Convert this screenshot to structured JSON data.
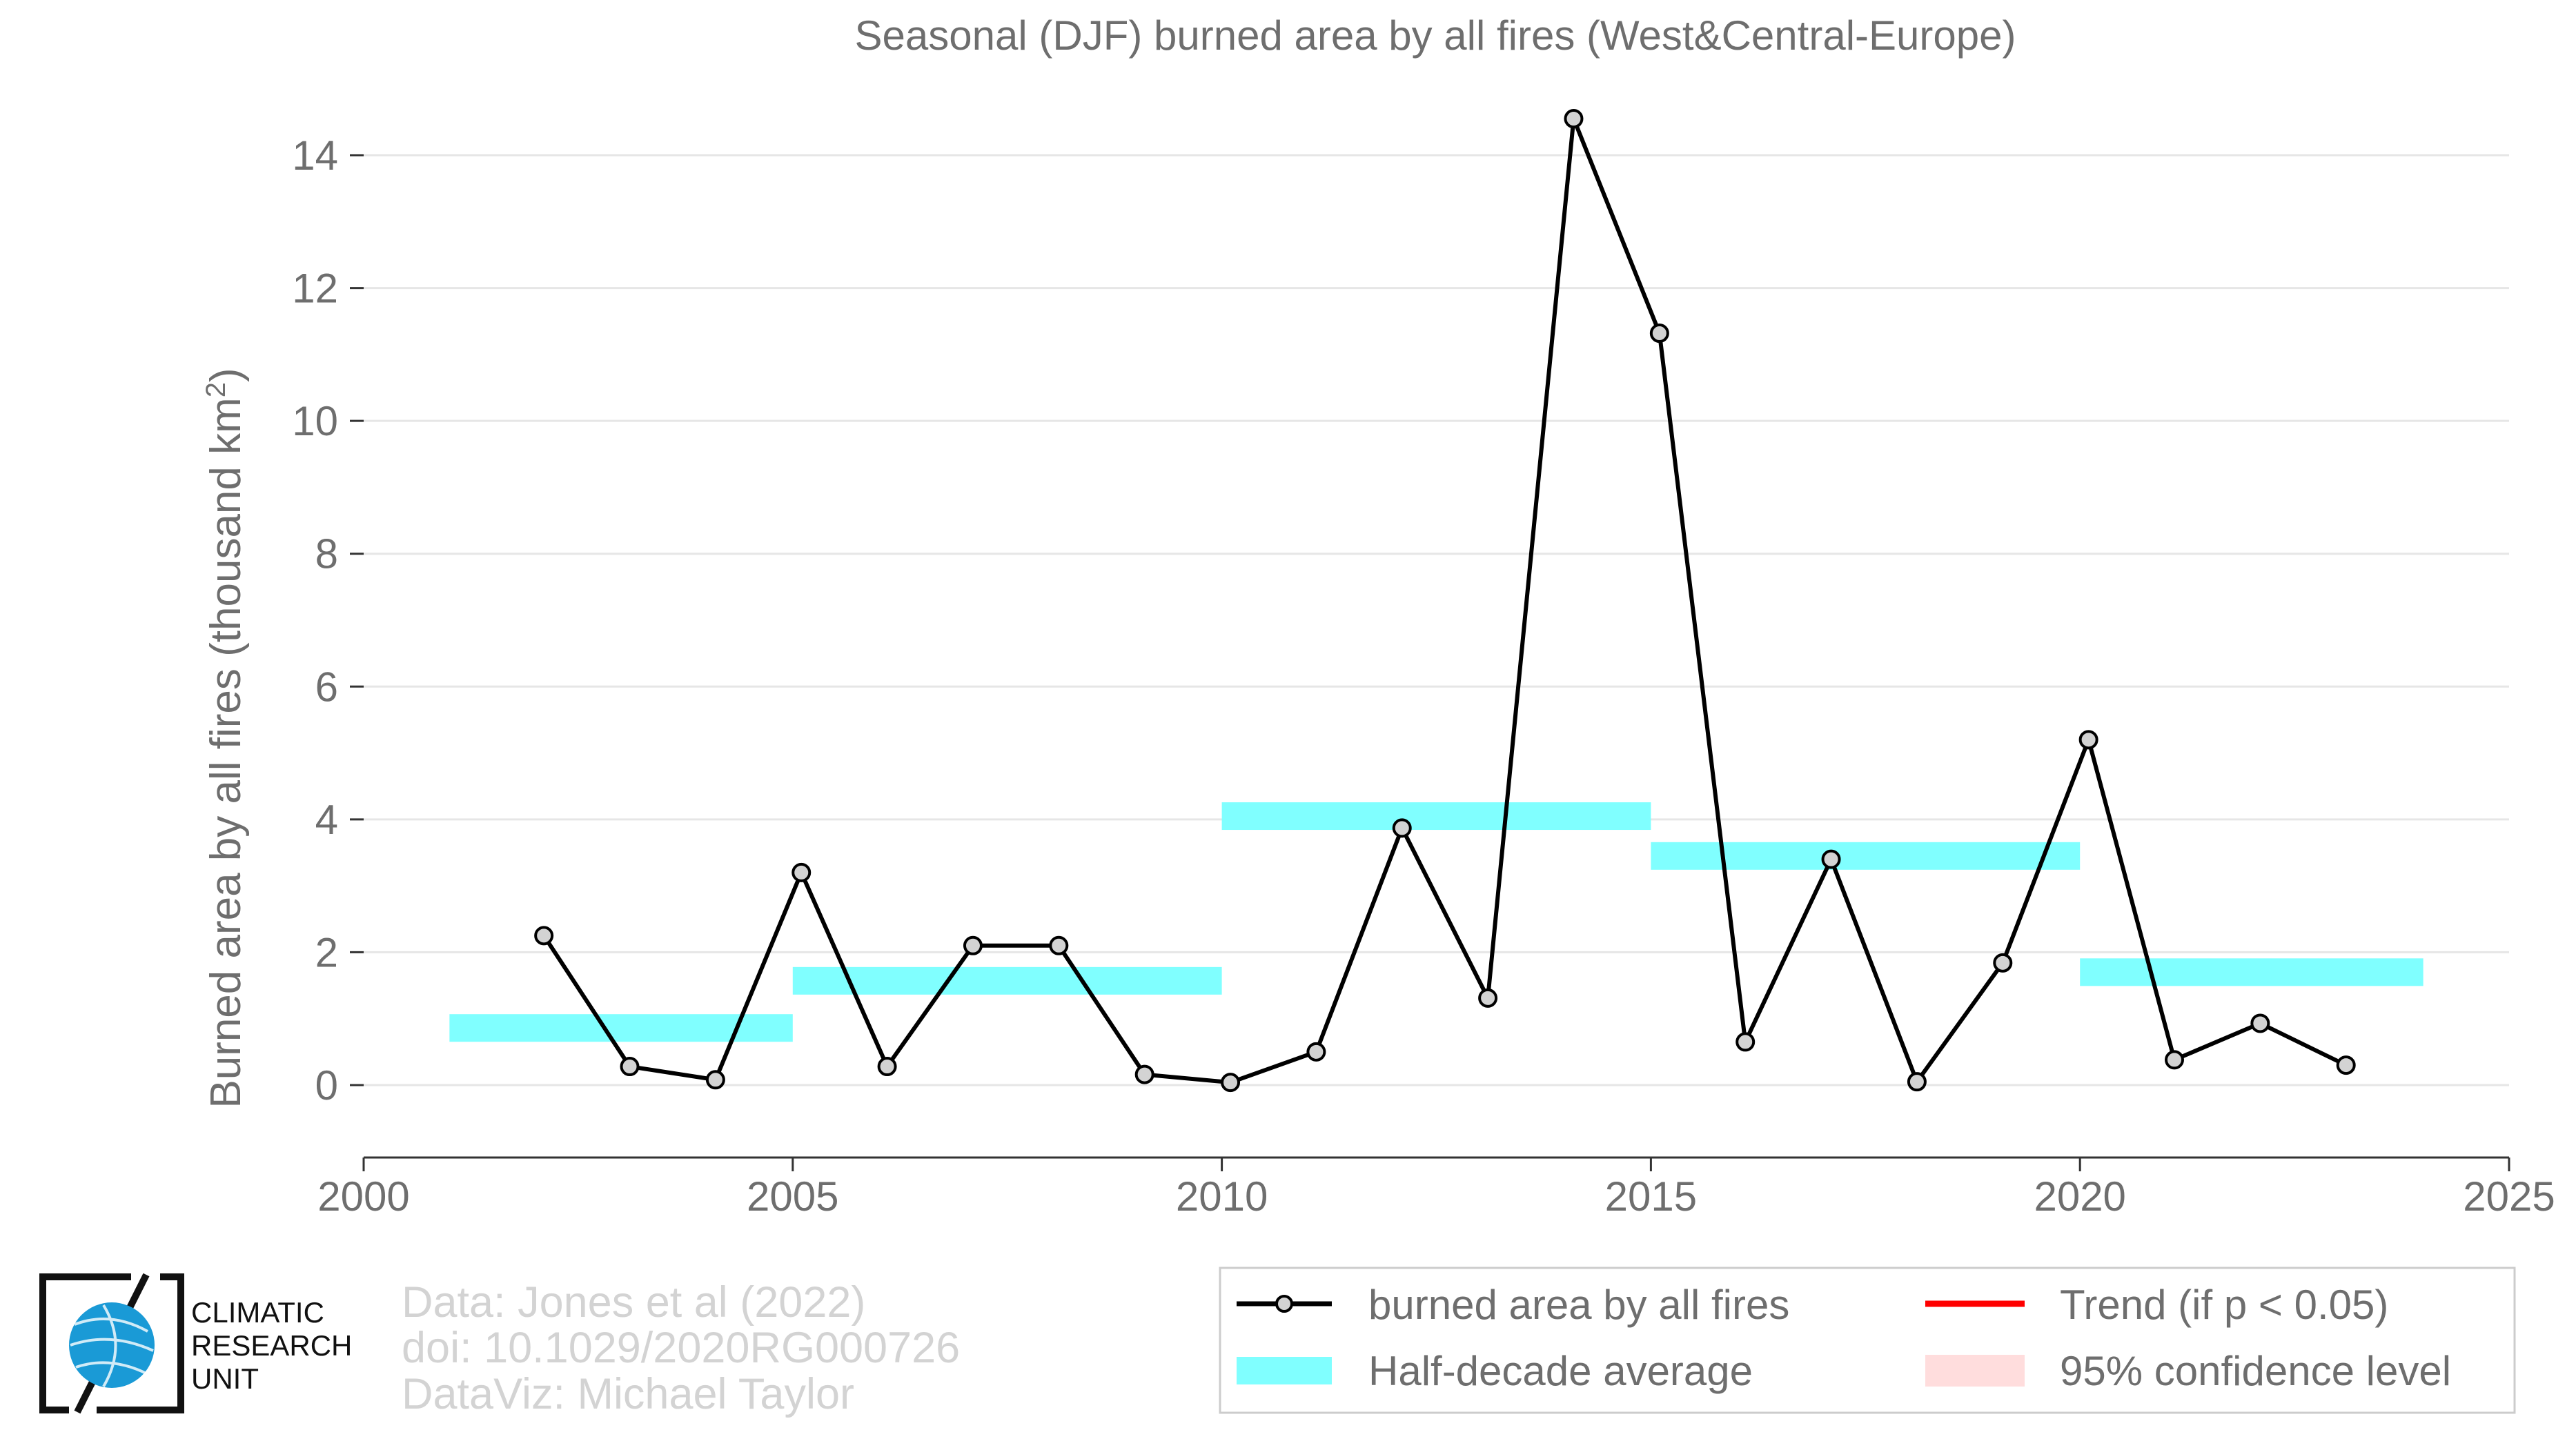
{
  "chart_data": {
    "type": "line",
    "title": "Seasonal (DJF) burned area by all fires (West&Central-Europe)",
    "ylabel": "Burned area by all fires (thousand km",
    "ylabel_sup": "2",
    "ylabel_end": ")",
    "xlim": [
      2000,
      2025
    ],
    "ylim": [
      -1.1,
      15
    ],
    "xticks": [
      2000,
      2005,
      2010,
      2015,
      2020,
      2025
    ],
    "yticks": [
      0,
      2,
      4,
      6,
      8,
      10,
      12,
      14
    ],
    "grid": "horizontal",
    "legend_position": "bottom-right",
    "series": [
      {
        "name": "burned area by all fires",
        "color": "#000000",
        "marker_fill": "#d3d3d3",
        "x": [
          2002,
          2003,
          2004,
          2005,
          2006,
          2007,
          2008,
          2009,
          2010,
          2011,
          2012,
          2013,
          2014,
          2015,
          2016,
          2017,
          2018,
          2019,
          2020,
          2021,
          2022,
          2023
        ],
        "y": [
          2.25,
          0.28,
          0.08,
          3.2,
          0.28,
          2.1,
          2.1,
          0.16,
          0.04,
          0.5,
          3.87,
          1.31,
          14.55,
          11.32,
          0.65,
          3.4,
          0.05,
          1.84,
          5.2,
          0.38,
          0.93,
          0.3
        ]
      }
    ],
    "half_decade_average": {
      "name": "Half-decade average",
      "color": "#80ffff",
      "segments": [
        {
          "x_start": 2001,
          "x_end": 2005,
          "y": 0.86
        },
        {
          "x_start": 2005,
          "x_end": 2010,
          "y": 1.57
        },
        {
          "x_start": 2010,
          "x_end": 2015,
          "y": 4.05
        },
        {
          "x_start": 2015,
          "x_end": 2020,
          "y": 3.45
        },
        {
          "x_start": 2020,
          "x_end": 2024,
          "y": 1.7
        }
      ]
    },
    "legend": [
      {
        "label": "burned area by all fires",
        "kind": "line-marker",
        "color": "#000000"
      },
      {
        "label": "Trend (if p < 0.05)",
        "kind": "line",
        "color": "#ff0000"
      },
      {
        "label": "Half-decade average",
        "kind": "band",
        "color": "#80ffff"
      },
      {
        "label": "95% confidence level",
        "kind": "band",
        "color": "#ffdddd"
      }
    ]
  },
  "footer": {
    "credits": [
      "Data: Jones et al (2022)",
      "doi: 10.1029/2020RG000726",
      "DataViz: Michael Taylor"
    ],
    "logo_lines": [
      "CLIMATIC",
      "RESEARCH",
      "UNIT"
    ],
    "logo_icon": "globe-icon"
  },
  "colors": {
    "text": "#6e6e6e",
    "grid": "#e6e6e6",
    "credits": "#d3d3d3",
    "logo_blue": "#1a9ad6"
  }
}
